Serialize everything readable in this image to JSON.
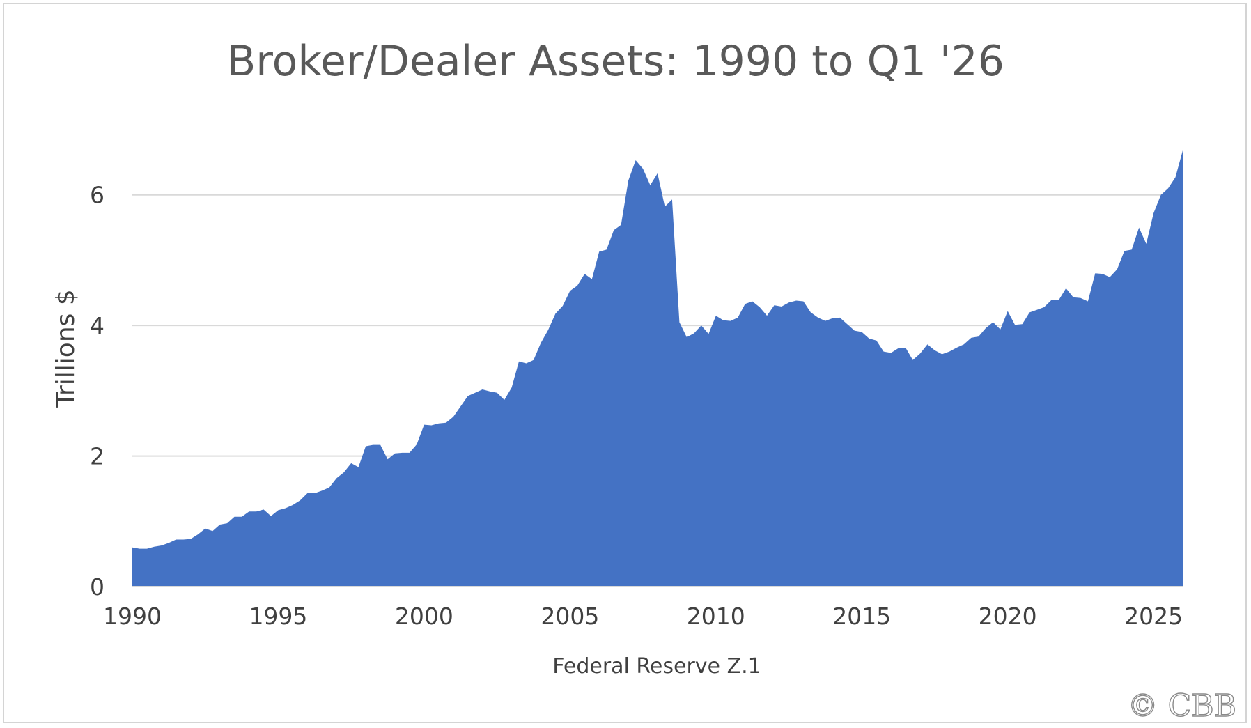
{
  "chart_data": {
    "type": "area",
    "title": "Broker/Dealer Assets: 1990 to Q1 '26",
    "xlabel": "Federal Reserve Z.1",
    "ylabel": "Trillions $",
    "xlim": [
      1990,
      2026
    ],
    "ylim": [
      0,
      7
    ],
    "x_ticks": [
      1990,
      1995,
      2000,
      2005,
      2010,
      2015,
      2020,
      2025
    ],
    "y_ticks": [
      0,
      2,
      4,
      6
    ],
    "grid": true,
    "legend": "none",
    "color": "#4472c4",
    "watermark": "© CBB",
    "series": [
      {
        "x": [
          1990.0,
          1990.25,
          1990.5,
          1990.75,
          1991.0,
          1991.25,
          1991.5,
          1991.75,
          1992.0,
          1992.25,
          1992.5,
          1992.75,
          1993.0,
          1993.25,
          1993.5,
          1993.75,
          1994.0,
          1994.25,
          1994.5,
          1994.75,
          1995.0,
          1995.25,
          1995.5,
          1995.75,
          1996.0,
          1996.25,
          1996.5,
          1996.75,
          1997.0,
          1997.25,
          1997.5,
          1997.75,
          1998.0,
          1998.25,
          1998.5,
          1998.75,
          1999.0,
          1999.25,
          1999.5,
          1999.75,
          2000.0,
          2000.25,
          2000.5,
          2000.75,
          2001.0,
          2001.25,
          2001.5,
          2001.75,
          2002.0,
          2002.25,
          2002.5,
          2002.75,
          2003.0,
          2003.25,
          2003.5,
          2003.75,
          2004.0,
          2004.25,
          2004.5,
          2004.75,
          2005.0,
          2005.25,
          2005.5,
          2005.75,
          2006.0,
          2006.25,
          2006.5,
          2006.75,
          2007.0,
          2007.25,
          2007.5,
          2007.75,
          2008.0,
          2008.25,
          2008.5,
          2008.75,
          2009.0,
          2009.25,
          2009.5,
          2009.75,
          2010.0,
          2010.25,
          2010.5,
          2010.75,
          2011.0,
          2011.25,
          2011.5,
          2011.75,
          2012.0,
          2012.25,
          2012.5,
          2012.75,
          2013.0,
          2013.25,
          2013.5,
          2013.75,
          2014.0,
          2014.25,
          2014.5,
          2014.75,
          2015.0,
          2015.25,
          2015.5,
          2015.75,
          2016.0,
          2016.25,
          2016.5,
          2016.75,
          2017.0,
          2017.25,
          2017.5,
          2017.75,
          2018.0,
          2018.25,
          2018.5,
          2018.75,
          2019.0,
          2019.25,
          2019.5,
          2019.75,
          2020.0,
          2020.25,
          2020.5,
          2020.75,
          2021.0,
          2021.25,
          2021.5,
          2021.75,
          2022.0,
          2022.25,
          2022.5,
          2022.75,
          2023.0,
          2023.25,
          2023.5,
          2023.75,
          2024.0,
          2024.25,
          2024.5,
          2024.75,
          2025.0,
          2025.25,
          2025.5,
          2025.75,
          2026.0
        ],
        "values": [
          0.6,
          0.58,
          0.58,
          0.61,
          0.63,
          0.67,
          0.72,
          0.72,
          0.73,
          0.8,
          0.89,
          0.85,
          0.95,
          0.97,
          1.07,
          1.07,
          1.15,
          1.15,
          1.18,
          1.08,
          1.17,
          1.2,
          1.25,
          1.32,
          1.43,
          1.43,
          1.47,
          1.52,
          1.66,
          1.75,
          1.89,
          1.83,
          2.15,
          2.17,
          2.17,
          1.95,
          2.04,
          2.05,
          2.05,
          2.18,
          2.48,
          2.47,
          2.5,
          2.51,
          2.6,
          2.76,
          2.92,
          2.97,
          3.02,
          2.99,
          2.97,
          2.86,
          3.05,
          3.45,
          3.42,
          3.47,
          3.73,
          3.93,
          4.18,
          4.3,
          4.53,
          4.61,
          4.79,
          4.71,
          5.13,
          5.16,
          5.46,
          5.54,
          6.22,
          6.53,
          6.4,
          6.15,
          6.33,
          5.82,
          5.93,
          4.05,
          3.82,
          3.88,
          4.0,
          3.87,
          4.15,
          4.08,
          4.07,
          4.12,
          4.33,
          4.37,
          4.28,
          4.15,
          4.31,
          4.29,
          4.35,
          4.38,
          4.37,
          4.2,
          4.12,
          4.07,
          4.11,
          4.12,
          4.02,
          3.92,
          3.9,
          3.8,
          3.77,
          3.6,
          3.58,
          3.65,
          3.66,
          3.47,
          3.57,
          3.71,
          3.62,
          3.56,
          3.6,
          3.66,
          3.71,
          3.81,
          3.83,
          3.96,
          4.05,
          3.94,
          4.22,
          4.01,
          4.02,
          4.2,
          4.24,
          4.28,
          4.39,
          4.39,
          4.57,
          4.43,
          4.42,
          4.37,
          4.8,
          4.79,
          4.74,
          4.86,
          5.14,
          5.16,
          5.5,
          5.25,
          5.72,
          6.0,
          6.1,
          6.27,
          6.68
        ]
      }
    ]
  }
}
